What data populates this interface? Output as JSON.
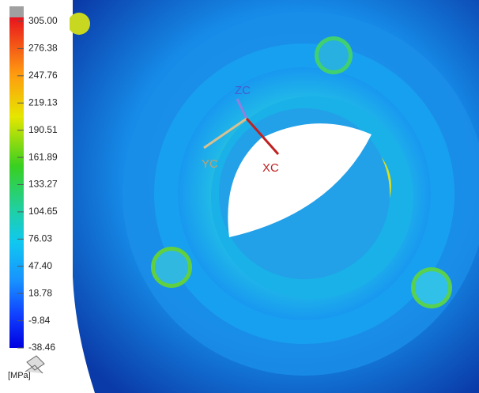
{
  "legend": {
    "labels": [
      "305.00",
      "276.38",
      "247.76",
      "219.13",
      "190.51",
      "161.89",
      "133.27",
      "104.65",
      "76.03",
      "47.40",
      "18.78",
      "-9.84",
      "-38.46"
    ],
    "unit": "[MPa]"
  },
  "triad": {
    "z": "ZC",
    "y": "YC",
    "x": "XC"
  }
}
